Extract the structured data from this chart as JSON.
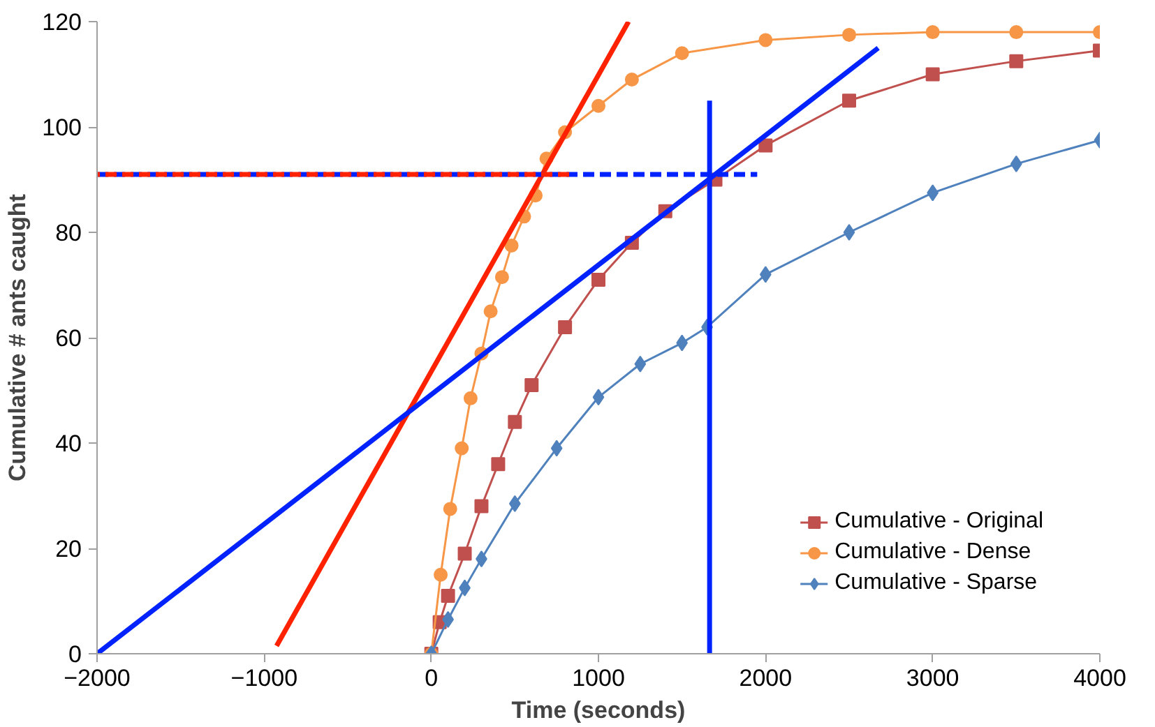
{
  "chart_data": {
    "type": "line",
    "xlabel": "Time (seconds)",
    "ylabel": "Cumulative # ants caught",
    "xlim": [
      -2000,
      4000
    ],
    "ylim": [
      0,
      120
    ],
    "xticks": [
      -2000,
      -1000,
      0,
      1000,
      2000,
      3000,
      4000
    ],
    "yticks": [
      0,
      20,
      40,
      60,
      80,
      100,
      120
    ],
    "grid": false,
    "legend": "bottom right",
    "series": [
      {
        "name": "Cumulative - Original",
        "color": "#c0504d",
        "marker": "square",
        "x": [
          0,
          50,
          100,
          200,
          300,
          400,
          500,
          600,
          800,
          1000,
          1200,
          1400,
          1700,
          2000,
          2500,
          3000,
          3500,
          4000
        ],
        "values": [
          0,
          6,
          11,
          19,
          28,
          36,
          44,
          51,
          62,
          71,
          78,
          84,
          90,
          96.5,
          105,
          110,
          112.5,
          114.5
        ]
      },
      {
        "name": "Cumulative - Dense",
        "color": "#f79646",
        "marker": "circle",
        "x": [
          0,
          56,
          113,
          182,
          235,
          300,
          355,
          423,
          480,
          555,
          624,
          689,
          800,
          1000,
          1200,
          1500,
          2000,
          2500,
          3000,
          3500,
          4000
        ],
        "values": [
          0,
          15,
          27.5,
          39,
          48.5,
          57,
          65,
          71.5,
          77.5,
          83,
          87,
          94,
          99,
          104,
          109,
          114,
          116.5,
          117.5,
          118,
          118,
          118
        ]
      },
      {
        "name": "Cumulative - Sparse",
        "color": "#4f81bd",
        "marker": "diamond",
        "x": [
          0,
          100,
          200,
          300,
          500,
          750,
          1000,
          1250,
          1500,
          1650,
          2000,
          2500,
          3000,
          3500,
          4000
        ],
        "values": [
          0,
          6.5,
          12.5,
          18,
          28.5,
          39,
          48.7,
          55,
          59,
          62,
          72,
          80,
          87.5,
          93,
          97.5
        ]
      },
      {
        "type": "line",
        "color": "#ff2200",
        "marker": "none",
        "line_style": "solid",
        "x": [
          -926,
          1180
        ],
        "values": [
          1.5,
          120
        ]
      },
      {
        "type": "line",
        "color": "#0022ff",
        "marker": "none",
        "line_style": "solid",
        "x": [
          -2000,
          2674
        ],
        "values": [
          0,
          115
        ]
      },
      {
        "type": "line",
        "color": "#0022ff",
        "marker": "none",
        "line_style": "solid",
        "x": [
          1665,
          1665
        ],
        "values": [
          0,
          105
        ]
      },
      {
        "type": "line",
        "color": "#0022ff",
        "marker": "none",
        "line_style": "dashed",
        "x": [
          -2000,
          1950
        ],
        "values": [
          91,
          91
        ]
      },
      {
        "type": "line",
        "color": "#ff2200",
        "marker": "none",
        "line_style": "dashed",
        "x": [
          -2000,
          840
        ],
        "values": [
          91,
          91
        ]
      }
    ]
  }
}
